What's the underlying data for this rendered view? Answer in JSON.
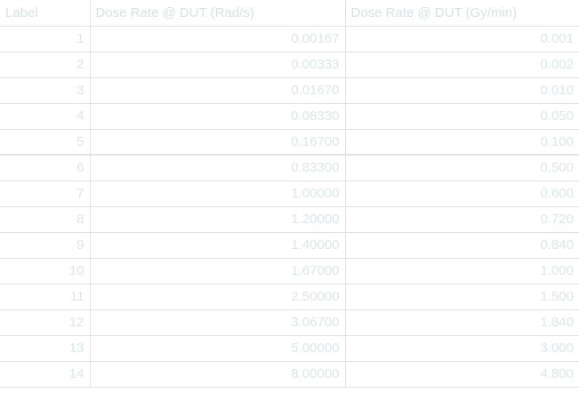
{
  "table": {
    "headers": {
      "label": "Label",
      "dose_rate_sec": "Dose Rate @ DUT (Rad/s)",
      "dose_rate_min": "Dose Rate @ DUT (Gy/min)"
    },
    "rows": [
      {
        "label": "1",
        "dose_rate_sec": "0.00167",
        "dose_rate_min": "0.001"
      },
      {
        "label": "2",
        "dose_rate_sec": "0.00333",
        "dose_rate_min": "0.002"
      },
      {
        "label": "3",
        "dose_rate_sec": "0.01670",
        "dose_rate_min": "0.010"
      },
      {
        "label": "4",
        "dose_rate_sec": "0.08330",
        "dose_rate_min": "0.050"
      },
      {
        "label": "5",
        "dose_rate_sec": "0.16700",
        "dose_rate_min": "0.100"
      },
      {
        "label": "6",
        "dose_rate_sec": "0.83300",
        "dose_rate_min": "0.500"
      },
      {
        "label": "7",
        "dose_rate_sec": "1.00000",
        "dose_rate_min": "0.600"
      },
      {
        "label": "8",
        "dose_rate_sec": "1.20000",
        "dose_rate_min": "0.720"
      },
      {
        "label": "9",
        "dose_rate_sec": "1.40000",
        "dose_rate_min": "0.840"
      },
      {
        "label": "10",
        "dose_rate_sec": "1.67000",
        "dose_rate_min": "1.000"
      },
      {
        "label": "11",
        "dose_rate_sec": "2.50000",
        "dose_rate_min": "1.500"
      },
      {
        "label": "12",
        "dose_rate_sec": "3.06700",
        "dose_rate_min": "1.840"
      },
      {
        "label": "13",
        "dose_rate_sec": "5.00000",
        "dose_rate_min": "3.000"
      },
      {
        "label": "14",
        "dose_rate_sec": "8.00000",
        "dose_rate_min": "4.800"
      }
    ]
  }
}
